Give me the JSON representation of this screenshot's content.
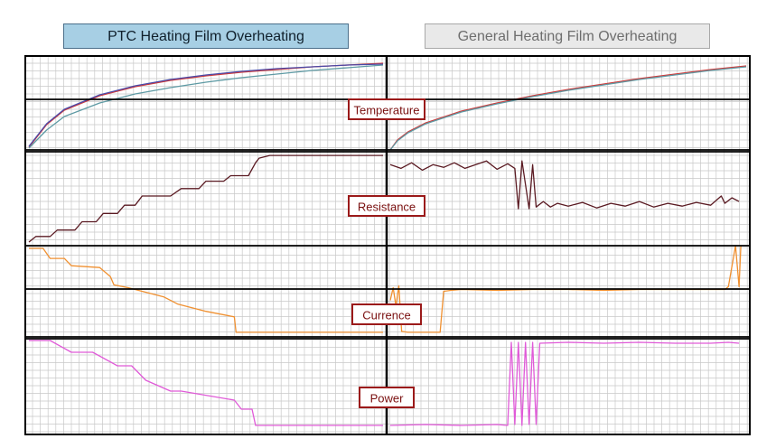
{
  "header": {
    "left_title": "PTC Heating Film Overheating",
    "right_title": "General Heating Film Overheating"
  },
  "colors": {
    "grid": "#c8c8c8",
    "frame": "#000000",
    "label_border": "#9b1a1a",
    "label_text": "#7a1010"
  },
  "chart_data": {
    "type": "line",
    "grid": true,
    "layout": "2 columns x 4 stacked panels, no axis tick labels",
    "columns": [
      {
        "name": "PTC Heating Film Overheating",
        "x_range": [
          0,
          100
        ]
      },
      {
        "name": "General Heating Film Overheating",
        "x_range": [
          0,
          100
        ]
      }
    ],
    "panels": [
      {
        "label": "Temperature",
        "y_range": [
          0,
          100
        ],
        "series": [
          {
            "column": 0,
            "color": "#d03a3a",
            "x": [
              0,
              5,
              10,
              20,
              30,
              40,
              50,
              60,
              70,
              80,
              90,
              100
            ],
            "y": [
              3,
              28,
              44,
              60,
              70,
              77,
              82,
              86,
              89,
              92,
              94,
              96
            ]
          },
          {
            "column": 0,
            "color": "#4a4aa8",
            "x": [
              0,
              5,
              10,
              20,
              30,
              40,
              50,
              60,
              70,
              80,
              90,
              100
            ],
            "y": [
              4,
              29,
              45,
              61,
              71,
              78,
              83,
              87,
              90,
              92,
              94,
              95
            ]
          },
          {
            "column": 0,
            "color": "#5e9aa4",
            "x": [
              0,
              5,
              10,
              20,
              30,
              40,
              50,
              60,
              70,
              80,
              90,
              100
            ],
            "y": [
              2,
              22,
              37,
              52,
              62,
              69,
              75,
              80,
              84,
              88,
              91,
              94
            ]
          },
          {
            "column": 1,
            "color": "#d03a3a",
            "x": [
              0,
              2,
              5,
              10,
              20,
              30,
              40,
              50,
              60,
              70,
              80,
              90,
              100
            ],
            "y": [
              0,
              11,
              20,
              30,
              43,
              52,
              60,
              67,
              73,
              79,
              84,
              89,
              93
            ]
          },
          {
            "column": 1,
            "color": "#5e9aa4",
            "x": [
              0,
              2,
              5,
              10,
              20,
              30,
              40,
              50,
              60,
              70,
              80,
              90,
              100
            ],
            "y": [
              0,
              10,
              19,
              29,
              42,
              51,
              59,
              66,
              72,
              78,
              83,
              88,
              92
            ]
          }
        ]
      },
      {
        "label": "Resistance",
        "y_range": [
          0,
          100
        ],
        "series": [
          {
            "column": 0,
            "color": "#5a1a22",
            "x": [
              0,
              2,
              6,
              8,
              13,
              15,
              19,
              21,
              25,
              27,
              30,
              32,
              40,
              43,
              48,
              50,
              55,
              57,
              62,
              64,
              65,
              68,
              78,
              100
            ],
            "y": [
              2,
              8,
              8,
              15,
              15,
              24,
              24,
              33,
              33,
              42,
              42,
              52,
              52,
              60,
              60,
              68,
              68,
              74,
              74,
              88,
              93,
              96,
              96,
              96
            ]
          },
          {
            "column": 1,
            "color": "#5a1a22",
            "x": [
              0,
              3,
              6,
              9,
              12,
              15,
              18,
              21,
              24,
              27,
              30,
              33,
              35,
              36,
              37,
              39,
              40,
              41,
              43,
              45,
              47,
              50,
              54,
              58,
              62,
              66,
              70,
              74,
              78,
              82,
              86,
              90,
              93,
              94,
              96,
              98
            ],
            "y": [
              86,
              82,
              88,
              80,
              86,
              83,
              88,
              82,
              86,
              90,
              81,
              87,
              82,
              38,
              90,
              38,
              86,
              40,
              46,
              40,
              44,
              41,
              45,
              39,
              44,
              41,
              46,
              40,
              44,
              41,
              45,
              42,
              52,
              44,
              50,
              46
            ]
          }
        ]
      },
      {
        "label": "Currence",
        "y_range": [
          0,
          100
        ],
        "series": [
          {
            "column": 0,
            "color": "#f09030",
            "x": [
              0,
              4,
              6,
              10,
              12,
              20,
              23,
              24,
              28,
              38,
              42,
              50,
              58,
              58.5,
              100
            ],
            "y": [
              97,
              97,
              86,
              86,
              78,
              76,
              66,
              57,
              54,
              44,
              36,
              28,
              22,
              5,
              5
            ]
          },
          {
            "column": 1,
            "color": "#f09030",
            "x": [
              0,
              0.8,
              1.6,
              2.4,
              3.2,
              5,
              14,
              15,
              17,
              20,
              30,
              40,
              50,
              60,
              70,
              80,
              90,
              94,
              95,
              97,
              98,
              98.5
            ],
            "y": [
              40,
              54,
              34,
              56,
              6,
              5,
              5,
              50,
              51,
              52,
              51,
              52,
              52,
              51,
              52,
              52,
              52,
              52,
              55,
              100,
              55,
              100
            ]
          }
        ]
      },
      {
        "label": "Power",
        "y_range": [
          0,
          100
        ],
        "series": [
          {
            "column": 0,
            "color": "#e05ad8",
            "x": [
              0,
              6,
              12,
              18,
              25,
              29,
              33,
              40,
              43,
              58,
              60,
              63,
              64,
              65,
              100
            ],
            "y": [
              98,
              98,
              85,
              85,
              70,
              70,
              54,
              42,
              42,
              32,
              22,
              22,
              4,
              4,
              4
            ]
          },
          {
            "column": 1,
            "color": "#e05ad8",
            "x": [
              0,
              10,
              20,
              30,
              33,
              34,
              35,
              36,
              37,
              38,
              39,
              40,
              41,
              42,
              50,
              60,
              70,
              80,
              90,
              95,
              98
            ],
            "y": [
              4,
              5,
              4,
              5,
              4,
              96,
              5,
              96,
              4,
              96,
              5,
              96,
              5,
              95,
              96,
              95,
              96,
              95,
              95,
              96,
              95
            ]
          }
        ]
      }
    ]
  }
}
